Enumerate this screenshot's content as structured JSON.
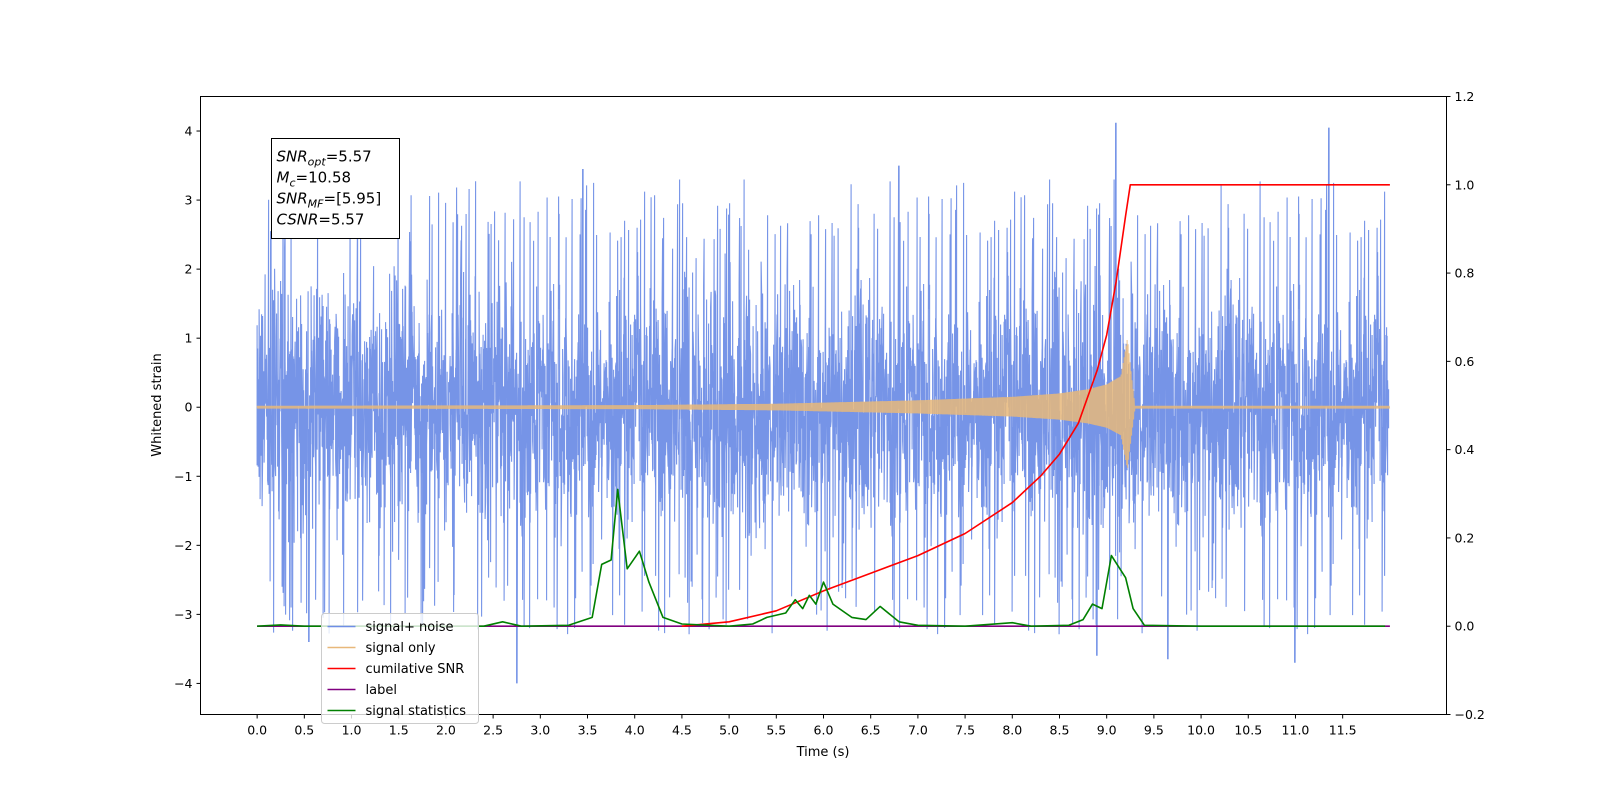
{
  "chart_data": {
    "type": "line",
    "xlabel": "Time (s)",
    "ylabel": "Whitened strain",
    "xlim": [
      -0.6,
      12.6
    ],
    "ylim": [
      -4.45,
      4.5
    ],
    "y2lim": [
      -0.2,
      1.2
    ],
    "x_ticks": [
      0.0,
      0.5,
      1.0,
      1.5,
      2.0,
      2.5,
      3.0,
      3.5,
      4.0,
      4.5,
      5.0,
      5.5,
      6.0,
      6.5,
      7.0,
      7.5,
      8.0,
      8.5,
      9.0,
      9.5,
      10.0,
      10.5,
      11.0,
      11.5
    ],
    "x_tick_labels": [
      "0.0",
      "0.5",
      "1.0",
      "1.5",
      "2.0",
      "2.5",
      "3.0",
      "3.5",
      "4.0",
      "4.5",
      "5.0",
      "5.5",
      "6.0",
      "6.5",
      "7.0",
      "7.5",
      "8.0",
      "8.5",
      "9.0",
      "9.5",
      "10.0",
      "10.5",
      "11.0",
      "11.5"
    ],
    "y_ticks": [
      4,
      3,
      2,
      1,
      0,
      -1,
      -2,
      -3,
      -4
    ],
    "y_tick_labels": [
      "4",
      "3",
      "2",
      "1",
      "0",
      "−1",
      "−2",
      "−3",
      "−4"
    ],
    "y2_ticks": [
      1.2,
      1.0,
      0.8,
      0.6,
      0.4,
      0.2,
      0.0,
      -0.2
    ],
    "y2_tick_labels": [
      "1.2",
      "1.0",
      "0.8",
      "0.6",
      "0.4",
      "0.2",
      "0.0",
      "−0.2"
    ],
    "legend_position": "lower-left",
    "annotation": {
      "lines": [
        {
          "main": "SNR",
          "sub": "opt",
          "value": "=5.57"
        },
        {
          "main": "M",
          "sub": "c",
          "value": "=10.58"
        },
        {
          "main": "SNR",
          "sub": "MF",
          "value": "=[5.95]"
        },
        {
          "main": "CSNR",
          "sub": "",
          "value": "=5.57"
        }
      ]
    },
    "series": [
      {
        "name": "signal+ noise",
        "axis": "left",
        "color": "#6f8ee6",
        "x_range": [
          0.0,
          11.99
        ],
        "typical_abs_max": 2.2,
        "peak_values": [
          [
            0.15,
            2.55
          ],
          [
            0.55,
            -3.4
          ],
          [
            2.75,
            -4.0
          ],
          [
            3.45,
            3.45
          ],
          [
            6.8,
            3.5
          ],
          [
            8.9,
            -3.6
          ],
          [
            9.1,
            4.12
          ],
          [
            9.65,
            -3.65
          ],
          [
            11.0,
            -3.7
          ],
          [
            11.35,
            4.05
          ]
        ]
      },
      {
        "name": "signal only",
        "axis": "left",
        "color": "#e8b87a",
        "merger_time": 9.23,
        "peak_amplitude": 1.0,
        "points": [
          [
            0.0,
            0.02
          ],
          [
            4.0,
            0.03
          ],
          [
            5.5,
            0.05
          ],
          [
            7.0,
            0.1
          ],
          [
            8.0,
            0.15
          ],
          [
            8.5,
            0.2
          ],
          [
            8.8,
            0.26
          ],
          [
            9.0,
            0.33
          ],
          [
            9.15,
            0.45
          ],
          [
            9.22,
            1.0
          ],
          [
            9.3,
            0.02
          ],
          [
            12.0,
            0.02
          ]
        ]
      },
      {
        "name": "cumilative SNR",
        "axis": "right",
        "color": "#ff0000",
        "points": [
          [
            4.5,
            0.0
          ],
          [
            5.0,
            0.01
          ],
          [
            5.5,
            0.035
          ],
          [
            6.0,
            0.08
          ],
          [
            6.5,
            0.12
          ],
          [
            7.0,
            0.16
          ],
          [
            7.5,
            0.21
          ],
          [
            8.0,
            0.28
          ],
          [
            8.3,
            0.34
          ],
          [
            8.5,
            0.39
          ],
          [
            8.7,
            0.46
          ],
          [
            8.9,
            0.58
          ],
          [
            9.0,
            0.66
          ],
          [
            9.1,
            0.78
          ],
          [
            9.2,
            0.93
          ],
          [
            9.25,
            1.0
          ],
          [
            12.0,
            1.0
          ]
        ]
      },
      {
        "name": "label",
        "axis": "right",
        "color": "#800080",
        "points": [
          [
            0.0,
            0.0
          ],
          [
            12.0,
            0.0
          ]
        ]
      },
      {
        "name": "signal statistics",
        "axis": "right",
        "color": "#008000",
        "points": [
          [
            0.0,
            0.0
          ],
          [
            0.25,
            0.003
          ],
          [
            0.5,
            0.0
          ],
          [
            2.4,
            0.0
          ],
          [
            2.6,
            0.01
          ],
          [
            2.8,
            0.0
          ],
          [
            3.3,
            0.002
          ],
          [
            3.55,
            0.02
          ],
          [
            3.65,
            0.14
          ],
          [
            3.75,
            0.15
          ],
          [
            3.82,
            0.31
          ],
          [
            3.92,
            0.13
          ],
          [
            4.05,
            0.17
          ],
          [
            4.15,
            0.1
          ],
          [
            4.3,
            0.02
          ],
          [
            4.5,
            0.005
          ],
          [
            5.0,
            0.0
          ],
          [
            5.25,
            0.005
          ],
          [
            5.4,
            0.02
          ],
          [
            5.6,
            0.03
          ],
          [
            5.7,
            0.06
          ],
          [
            5.78,
            0.04
          ],
          [
            5.85,
            0.07
          ],
          [
            5.92,
            0.05
          ],
          [
            6.0,
            0.1
          ],
          [
            6.1,
            0.05
          ],
          [
            6.3,
            0.02
          ],
          [
            6.45,
            0.015
          ],
          [
            6.6,
            0.045
          ],
          [
            6.8,
            0.01
          ],
          [
            7.0,
            0.002
          ],
          [
            7.5,
            0.0
          ],
          [
            8.0,
            0.008
          ],
          [
            8.2,
            0.0
          ],
          [
            8.6,
            0.002
          ],
          [
            8.75,
            0.015
          ],
          [
            8.85,
            0.05
          ],
          [
            8.95,
            0.04
          ],
          [
            9.05,
            0.16
          ],
          [
            9.2,
            0.11
          ],
          [
            9.28,
            0.04
          ],
          [
            9.4,
            0.002
          ],
          [
            10.0,
            0.0
          ],
          [
            11.95,
            0.0
          ]
        ]
      }
    ]
  }
}
